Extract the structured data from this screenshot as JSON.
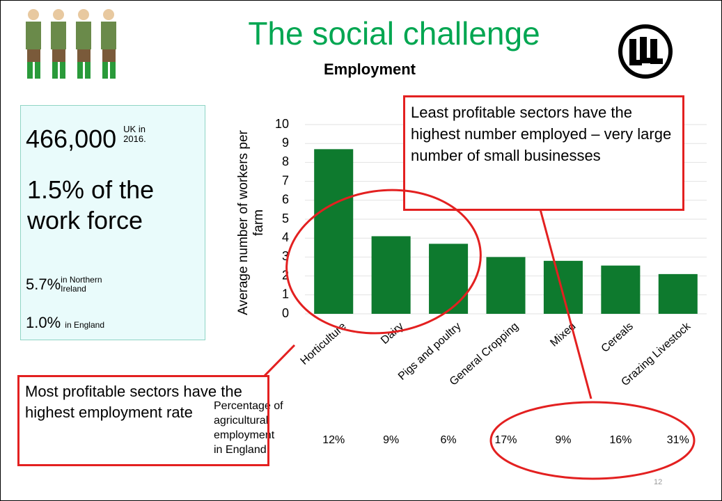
{
  "slide": {
    "title": "The social challenge",
    "subtitle": "Employment",
    "page_number": "12"
  },
  "facts": {
    "total": "466,000",
    "total_note": "UK in 2016.",
    "share": "1.5% of the work force",
    "ni_value": "5.7%",
    "ni_note": "in Northern Ireland",
    "england_value": "1.0%",
    "england_note": "in England"
  },
  "callouts": {
    "top": "Least profitable sectors have the highest number employed – very large number of small businesses",
    "bottom": "Most profitable sectors have the highest employment rate"
  },
  "chart_data": {
    "type": "bar",
    "y_label": "Average number of workers per farm",
    "categories": [
      "Horticulture",
      "Dairy",
      "Pigs and poultry",
      "General Cropping",
      "Mixed",
      "Cereals",
      "Grazing Livestock"
    ],
    "values": [
      8.7,
      4.1,
      3.7,
      3.0,
      2.8,
      2.55,
      2.1
    ],
    "color": "#0e7a2e",
    "ylim": [
      0,
      10
    ],
    "yticks": [
      0,
      1,
      2,
      3,
      4,
      5,
      6,
      7,
      8,
      9,
      10
    ],
    "grid": true
  },
  "table": {
    "header": "Percentage of agricultural employment in England",
    "cells": [
      "12%",
      "9%",
      "6%",
      "17%",
      "9%",
      "16%",
      "31%"
    ]
  }
}
